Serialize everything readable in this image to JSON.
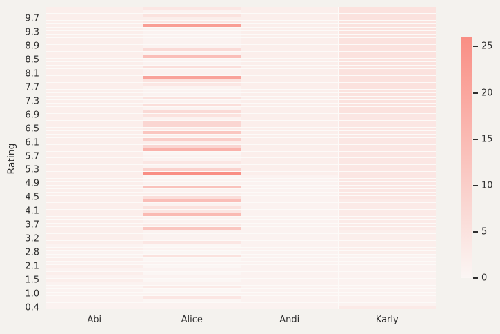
{
  "chart_data": {
    "type": "heatmap",
    "title": "",
    "xlabel": "",
    "ylabel": "Rating",
    "columns": [
      "Abi",
      "Alice",
      "Andi",
      "Karly"
    ],
    "n_rows": 88,
    "ytick_labels": [
      "9.7",
      "9.3",
      "8.9",
      "8.5",
      "8.1",
      "7.7",
      "7.3",
      "6.9",
      "6.5",
      "6.1",
      "5.7",
      "5.3",
      "4.9",
      "4.5",
      "4.1",
      "3.7",
      "3.2",
      "2.8",
      "2.1",
      "1.5",
      "1.0",
      "0.4"
    ],
    "ytick_first_row": 3,
    "ytick_step": 4,
    "values": [
      [
        2,
        4,
        2,
        5
      ],
      [
        2,
        1,
        2,
        5
      ],
      [
        2,
        5,
        2,
        5
      ],
      [
        2,
        2,
        2,
        5
      ],
      [
        2,
        4,
        2,
        5
      ],
      [
        2,
        22,
        2,
        5
      ],
      [
        2,
        1,
        2,
        5
      ],
      [
        2,
        1,
        2,
        5
      ],
      [
        2,
        1,
        2,
        5
      ],
      [
        2,
        1,
        2,
        5
      ],
      [
        2,
        1,
        2,
        5
      ],
      [
        2,
        1,
        2,
        5
      ],
      [
        2,
        7,
        2,
        5
      ],
      [
        2,
        1,
        2,
        5
      ],
      [
        2,
        14,
        2,
        5
      ],
      [
        2,
        1,
        2,
        5
      ],
      [
        2,
        1,
        2,
        5
      ],
      [
        2,
        6,
        2,
        5
      ],
      [
        2,
        1,
        2,
        5
      ],
      [
        2,
        1,
        2,
        5
      ],
      [
        2,
        21,
        2,
        5
      ],
      [
        2,
        5,
        2,
        5
      ],
      [
        2,
        4,
        2,
        5
      ],
      [
        2,
        1,
        2,
        5
      ],
      [
        2,
        1,
        2,
        5
      ],
      [
        2,
        1,
        2,
        5
      ],
      [
        2,
        5,
        2,
        5
      ],
      [
        2,
        1,
        2,
        5
      ],
      [
        2,
        6,
        2,
        5
      ],
      [
        2,
        1,
        2,
        5
      ],
      [
        2,
        7,
        2,
        5
      ],
      [
        2,
        5,
        2,
        4
      ],
      [
        2,
        1,
        2,
        4
      ],
      [
        2,
        8,
        2,
        4
      ],
      [
        2,
        8,
        2,
        4
      ],
      [
        2,
        3,
        2,
        4
      ],
      [
        2,
        12,
        2,
        4
      ],
      [
        2,
        2,
        2,
        4
      ],
      [
        2,
        10,
        2,
        4
      ],
      [
        2,
        2,
        2,
        4
      ],
      [
        2,
        8,
        2,
        4
      ],
      [
        2,
        17,
        2,
        4
      ],
      [
        2,
        0,
        2,
        4
      ],
      [
        2,
        1,
        2,
        4
      ],
      [
        2,
        1,
        2,
        4
      ],
      [
        2,
        4,
        2,
        4
      ],
      [
        2,
        1,
        2,
        4
      ],
      [
        2,
        9,
        2,
        4
      ],
      [
        2,
        26,
        2,
        4
      ],
      [
        2,
        0,
        1,
        4
      ],
      [
        2,
        1,
        1,
        4
      ],
      [
        2,
        1,
        1,
        4
      ],
      [
        2,
        13,
        1,
        4
      ],
      [
        2,
        1,
        1,
        4
      ],
      [
        2,
        2,
        1,
        4
      ],
      [
        2,
        6,
        1,
        4
      ],
      [
        2,
        14,
        1,
        3
      ],
      [
        2,
        1,
        1,
        3
      ],
      [
        2,
        5,
        1,
        3
      ],
      [
        2,
        4,
        1,
        3
      ],
      [
        2,
        15,
        1,
        3
      ],
      [
        2,
        1,
        1,
        3
      ],
      [
        2,
        1,
        1,
        3
      ],
      [
        2,
        3,
        1,
        3
      ],
      [
        2,
        12,
        1,
        3
      ],
      [
        2,
        1,
        1,
        2
      ],
      [
        2,
        1,
        1,
        2
      ],
      [
        2,
        1,
        1,
        2
      ],
      [
        2,
        4,
        1,
        2
      ],
      [
        1,
        0,
        1,
        2
      ],
      [
        2,
        1,
        1,
        2
      ],
      [
        1,
        0,
        1,
        2
      ],
      [
        1,
        5,
        1,
        1
      ],
      [
        2,
        0,
        1,
        1
      ],
      [
        1,
        1,
        1,
        1
      ],
      [
        2,
        0,
        1,
        1
      ],
      [
        1,
        1,
        1,
        1
      ],
      [
        2,
        0,
        1,
        1
      ],
      [
        1,
        1,
        1,
        1
      ],
      [
        2,
        0,
        1,
        1
      ],
      [
        1,
        1,
        1,
        1
      ],
      [
        1,
        3,
        1,
        1
      ],
      [
        1,
        0,
        1,
        1
      ],
      [
        1,
        1,
        1,
        1
      ],
      [
        1,
        4,
        1,
        1
      ],
      [
        1,
        0,
        1,
        1
      ],
      [
        1,
        1,
        1,
        1
      ],
      [
        1,
        1,
        1,
        3
      ]
    ],
    "colorbar": {
      "vmin": 0,
      "vmax": 26,
      "ticks": [
        0,
        5,
        10,
        15,
        20,
        25
      ]
    },
    "colors": {
      "figure_background": "#f4f2ee",
      "cell_gap": "#fcfaf8",
      "cmap_low": "#fbf6f4",
      "cmap_high": "#f98e84",
      "text": "#2e2e2e"
    },
    "legend_position": "colorbar-right",
    "grid": false
  }
}
